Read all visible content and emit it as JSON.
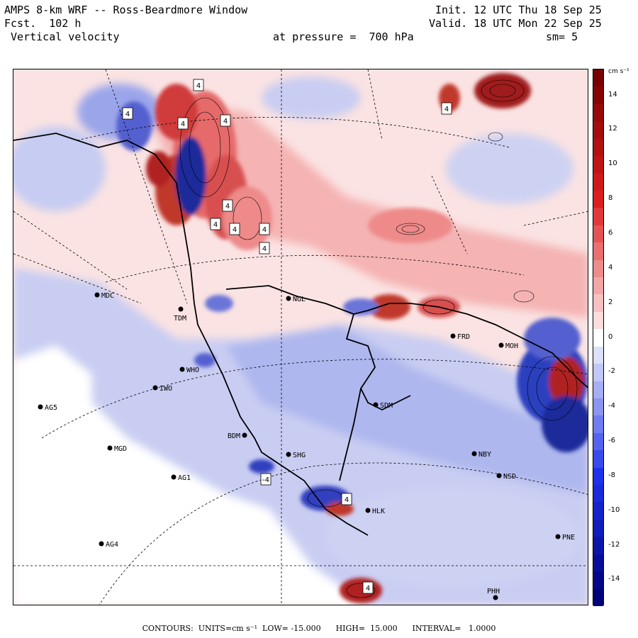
{
  "header": {
    "title": "AMPS 8-km WRF -- Ross-Beardmore Window",
    "forecast": "Fcst.  102 h",
    "field": " Vertical velocity",
    "level": "at pressure =  700 hPa",
    "init": "Init. 12 UTC Thu 18 Sep 25",
    "valid": "Valid. 18 UTC Mon 22 Sep 25",
    "smoothing": "sm= 5"
  },
  "colorbar": {
    "unit_label": "cm s⁻¹",
    "ticks": [
      "14",
      "12",
      "10",
      "8",
      "6",
      "4",
      "2",
      "0",
      "-2",
      "-4",
      "-6",
      "-8",
      "-10",
      "-12",
      "-14"
    ],
    "top_color": "#7f0000",
    "bottom_color": "#00007f",
    "zero_color": "#ffffff"
  },
  "stations": [
    {
      "name": "MDC"
    },
    {
      "name": "TDM"
    },
    {
      "name": "NGL"
    },
    {
      "name": "FRD"
    },
    {
      "name": "MOH"
    },
    {
      "name": "WHO"
    },
    {
      "name": "IWO"
    },
    {
      "name": "AG5"
    },
    {
      "name": "SDM"
    },
    {
      "name": "BDM"
    },
    {
      "name": "MGD"
    },
    {
      "name": "SHG"
    },
    {
      "name": "NBY"
    },
    {
      "name": "AG1"
    },
    {
      "name": "NSD"
    },
    {
      "name": "HLK"
    },
    {
      "name": "AG4"
    },
    {
      "name": "PNE"
    },
    {
      "name": "PHH"
    }
  ],
  "contour_labels": [
    "4",
    "4",
    "4",
    "4",
    "4",
    "4",
    "4",
    "4",
    "4",
    "-4",
    "4",
    "4",
    "4"
  ],
  "footer": "CONTOURS:  UNITS=cm s⁻¹  LOW= -15.000      HIGH=  15.000      INTERVAL=   1.0000"
}
